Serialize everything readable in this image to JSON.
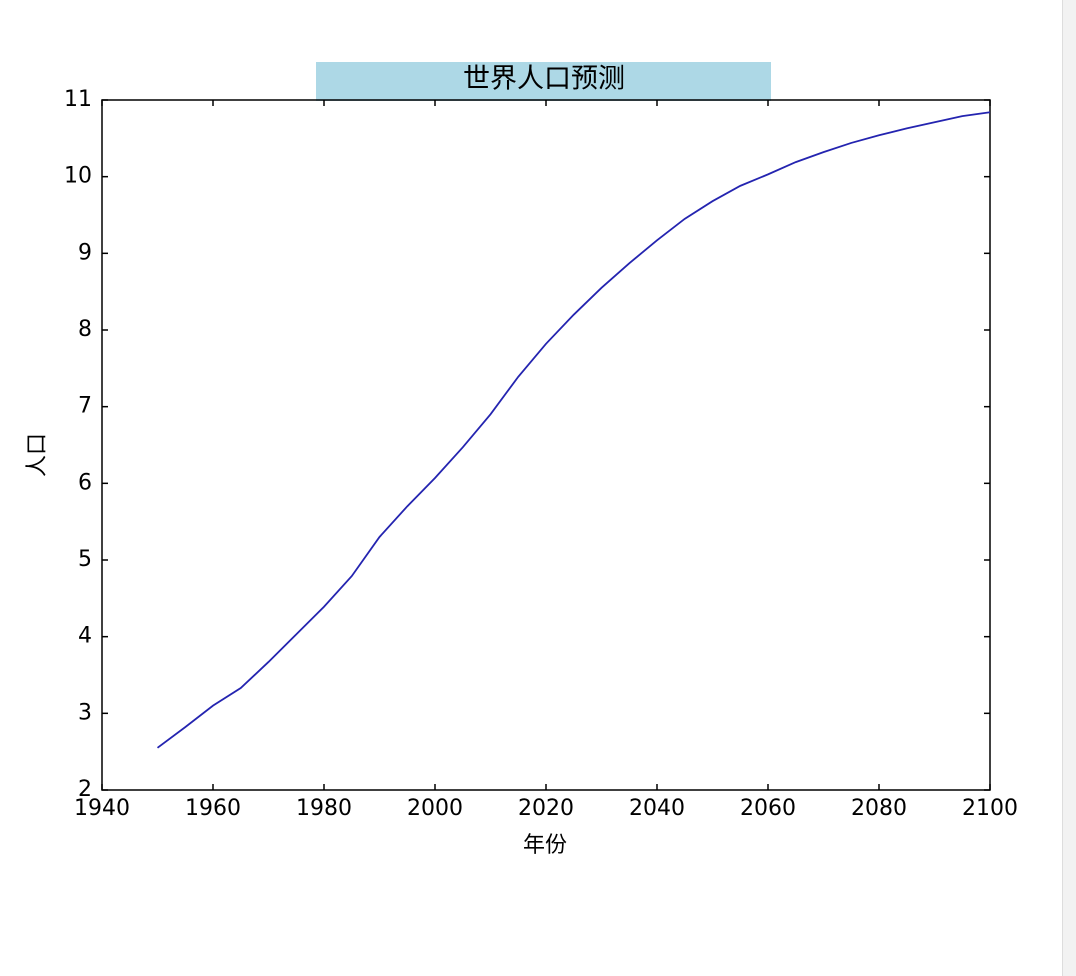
{
  "chart_data": {
    "type": "line",
    "title": "世界人口预测",
    "xlabel": "年份",
    "ylabel": "人口",
    "x": [
      1950,
      1955,
      1960,
      1965,
      1970,
      1975,
      1980,
      1985,
      1990,
      1995,
      2000,
      2005,
      2010,
      2015,
      2020,
      2025,
      2030,
      2035,
      2040,
      2045,
      2050,
      2055,
      2060,
      2065,
      2070,
      2075,
      2080,
      2085,
      2090,
      2095,
      2100
    ],
    "series": [
      {
        "color": "#2424b0",
        "values": [
          2.55,
          2.82,
          3.1,
          3.33,
          3.67,
          4.03,
          4.39,
          4.79,
          5.3,
          5.7,
          6.07,
          6.47,
          6.9,
          7.39,
          7.82,
          8.2,
          8.55,
          8.87,
          9.17,
          9.45,
          9.68,
          9.88,
          10.03,
          10.19,
          10.32,
          10.44,
          10.54,
          10.63,
          10.71,
          10.79,
          10.84
        ]
      }
    ],
    "xlim": [
      1940,
      2100
    ],
    "ylim": [
      2,
      11
    ],
    "xticks": [
      1940,
      1960,
      1980,
      2000,
      2020,
      2040,
      2060,
      2080,
      2100
    ],
    "yticks": [
      2,
      3,
      4,
      5,
      6,
      7,
      8,
      9,
      10,
      11
    ]
  }
}
